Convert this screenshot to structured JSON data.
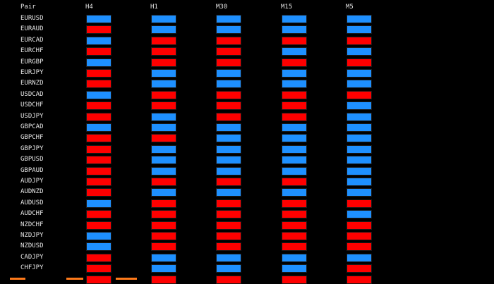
{
  "table": {
    "corner_label": "Pair",
    "timeframes": [
      "H4",
      "H1",
      "M30",
      "M15",
      "M5"
    ],
    "colors": {
      "blue": "#1e90ff",
      "red": "#ff0000"
    },
    "rows": [
      {
        "pair": "EURUSD",
        "signals": [
          "blue",
          "blue",
          "blue",
          "blue",
          "blue"
        ]
      },
      {
        "pair": "EURAUD",
        "signals": [
          "red",
          "blue",
          "blue",
          "blue",
          "blue"
        ]
      },
      {
        "pair": "EURCAD",
        "signals": [
          "blue",
          "red",
          "red",
          "red",
          "red"
        ]
      },
      {
        "pair": "EURCHF",
        "signals": [
          "red",
          "red",
          "red",
          "blue",
          "blue"
        ]
      },
      {
        "pair": "EURGBP",
        "signals": [
          "blue",
          "red",
          "red",
          "red",
          "red"
        ]
      },
      {
        "pair": "EURJPY",
        "signals": [
          "red",
          "blue",
          "blue",
          "blue",
          "blue"
        ]
      },
      {
        "pair": "EURNZD",
        "signals": [
          "red",
          "blue",
          "blue",
          "blue",
          "blue"
        ]
      },
      {
        "pair": "USDCAD",
        "signals": [
          "blue",
          "red",
          "red",
          "red",
          "red"
        ]
      },
      {
        "pair": "USDCHF",
        "signals": [
          "red",
          "red",
          "red",
          "red",
          "blue"
        ]
      },
      {
        "pair": "USDJPY",
        "signals": [
          "red",
          "blue",
          "red",
          "red",
          "blue"
        ]
      },
      {
        "pair": "GBPCAD",
        "signals": [
          "blue",
          "blue",
          "blue",
          "blue",
          "blue"
        ]
      },
      {
        "pair": "GBPCHF",
        "signals": [
          "red",
          "red",
          "blue",
          "blue",
          "blue"
        ]
      },
      {
        "pair": "GBPJPY",
        "signals": [
          "red",
          "blue",
          "blue",
          "blue",
          "blue"
        ]
      },
      {
        "pair": "GBPUSD",
        "signals": [
          "red",
          "blue",
          "blue",
          "blue",
          "blue"
        ]
      },
      {
        "pair": "GBPAUD",
        "signals": [
          "red",
          "blue",
          "blue",
          "blue",
          "blue"
        ]
      },
      {
        "pair": "AUDJPY",
        "signals": [
          "red",
          "red",
          "red",
          "red",
          "blue"
        ]
      },
      {
        "pair": "AUDNZD",
        "signals": [
          "red",
          "blue",
          "blue",
          "blue",
          "blue"
        ]
      },
      {
        "pair": "AUDUSD",
        "signals": [
          "blue",
          "red",
          "red",
          "red",
          "red"
        ]
      },
      {
        "pair": "AUDCHF",
        "signals": [
          "red",
          "red",
          "red",
          "red",
          "blue"
        ]
      },
      {
        "pair": "NZDCHF",
        "signals": [
          "red",
          "red",
          "red",
          "red",
          "red"
        ]
      },
      {
        "pair": "NZDJPY",
        "signals": [
          "blue",
          "red",
          "red",
          "red",
          "red"
        ]
      },
      {
        "pair": "NZDUSD",
        "signals": [
          "blue",
          "red",
          "red",
          "red",
          "red"
        ]
      },
      {
        "pair": "CADJPY",
        "signals": [
          "red",
          "blue",
          "blue",
          "blue",
          "blue"
        ]
      },
      {
        "pair": "CHFJPY",
        "signals": [
          "red",
          "blue",
          "blue",
          "blue",
          "red"
        ]
      },
      {
        "pair": "",
        "signals": [
          "red",
          "red",
          "red",
          "red",
          "red"
        ]
      }
    ]
  },
  "watermark": {
    "color": "#ff7a1a"
  }
}
